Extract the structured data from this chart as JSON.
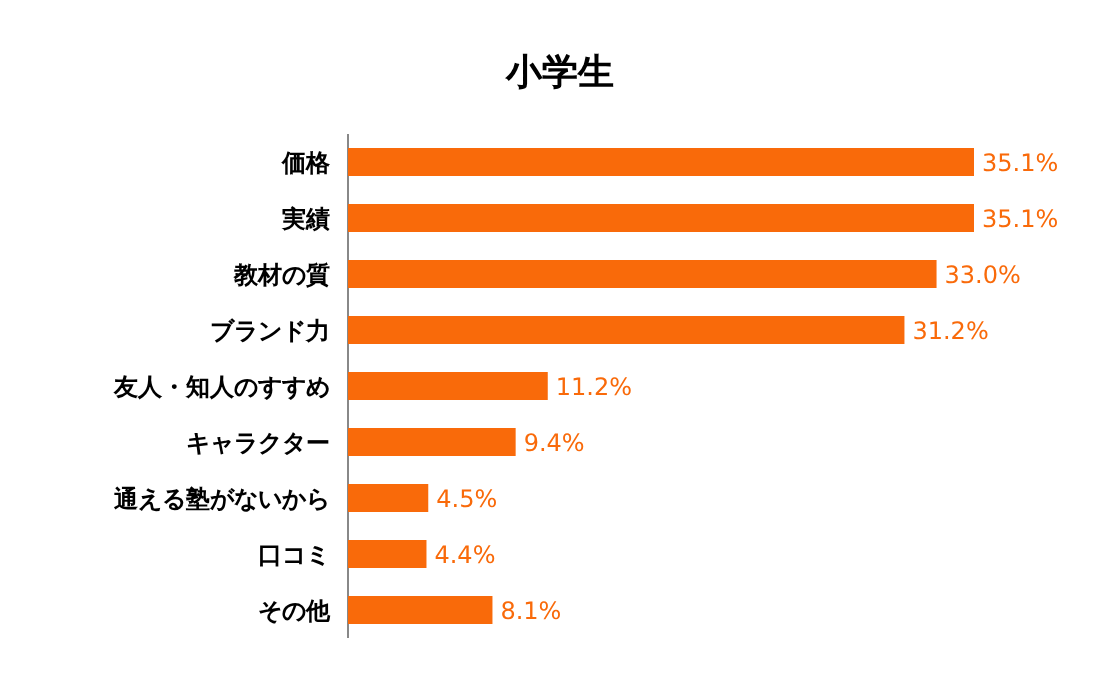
{
  "chart_data": {
    "type": "bar",
    "orientation": "horizontal",
    "title": "小学生",
    "categories": [
      "価格",
      "実績",
      "教材の質",
      "ブランド力",
      "友人・知人のすすめ",
      "キャラクター",
      "通える塾がないから",
      "口コミ",
      "その他"
    ],
    "values": [
      35.1,
      35.1,
      33.0,
      31.2,
      11.2,
      9.4,
      4.5,
      4.4,
      8.1
    ],
    "value_labels": [
      "35.1%",
      "35.1%",
      "33.0%",
      "31.2%",
      "11.2%",
      "9.4%",
      "4.5%",
      "4.4%",
      "8.1%"
    ],
    "color": "#f96a0a"
  }
}
